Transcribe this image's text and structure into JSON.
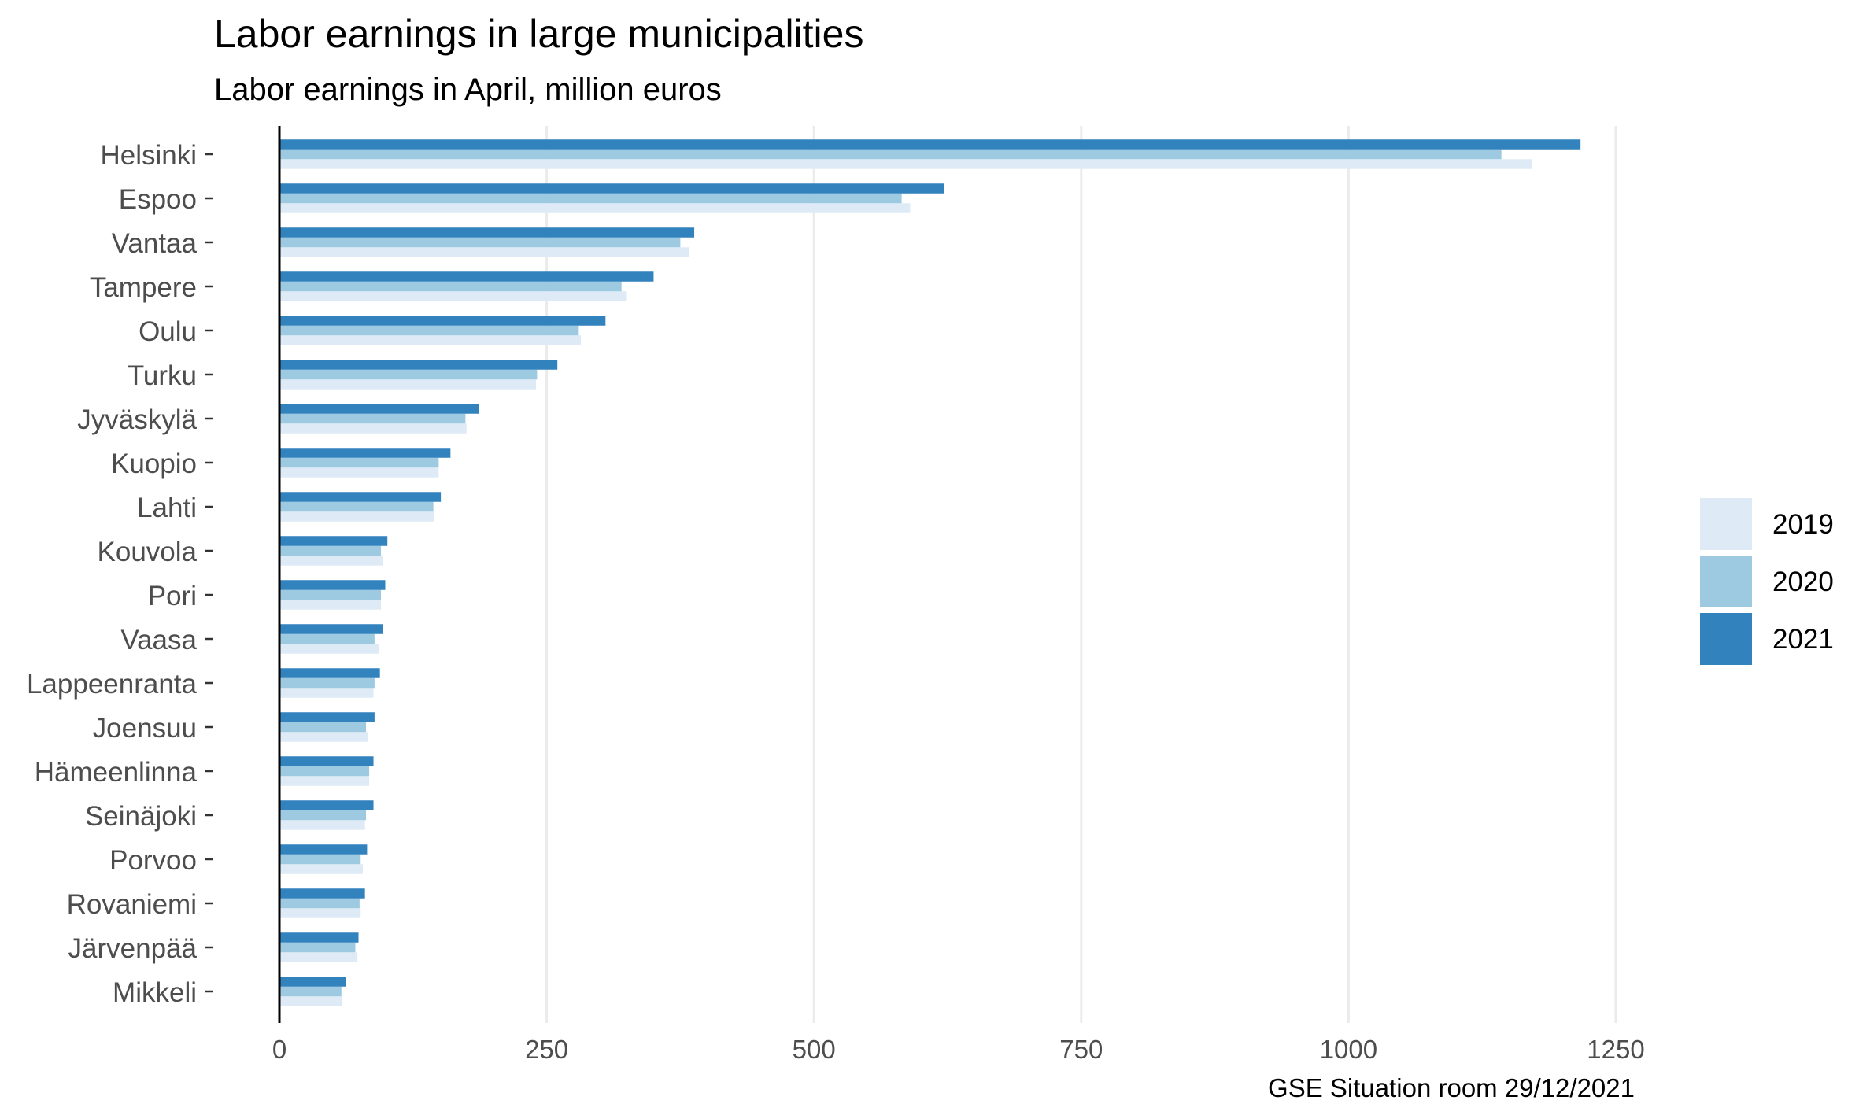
{
  "chart_data": {
    "type": "bar",
    "orientation": "horizontal",
    "title": "Labor earnings in large municipalities",
    "subtitle": "Labor earnings in April, million euros",
    "caption": "GSE Situation room 29/12/2021",
    "categories": [
      "Helsinki",
      "Espoo",
      "Vantaa",
      "Tampere",
      "Oulu",
      "Turku",
      "Jyväskylä",
      "Kuopio",
      "Lahti",
      "Kouvola",
      "Pori",
      "Vaasa",
      "Lappeenranta",
      "Joensuu",
      "Hämeenlinna",
      "Seinäjoki",
      "Porvoo",
      "Rovaniemi",
      "Järvenpää",
      "Mikkeli"
    ],
    "series": [
      {
        "name": "2019",
        "color": "#deebf7",
        "values": [
          1172,
          590,
          383,
          325,
          282,
          240,
          175,
          149,
          145,
          97,
          95,
          93,
          88,
          83,
          84,
          80,
          78,
          76,
          73,
          59
        ]
      },
      {
        "name": "2020",
        "color": "#9ecae1",
        "values": [
          1143,
          582,
          375,
          320,
          280,
          241,
          174,
          149,
          144,
          95,
          95,
          89,
          89,
          81,
          84,
          81,
          76,
          75,
          71,
          58
        ]
      },
      {
        "name": "2021",
        "color": "#3182bd",
        "values": [
          1217,
          622,
          388,
          350,
          305,
          260,
          187,
          160,
          151,
          101,
          99,
          97,
          94,
          89,
          88,
          88,
          82,
          80,
          74,
          62
        ]
      }
    ],
    "xlim": [
      0,
      1400
    ],
    "x_ticks": [
      0,
      250,
      500,
      750,
      1000,
      1250
    ],
    "x_tick_labels": [
      "0",
      "250",
      "500",
      "750",
      "1000",
      "1250"
    ],
    "grid": true,
    "legend_position": "right"
  }
}
